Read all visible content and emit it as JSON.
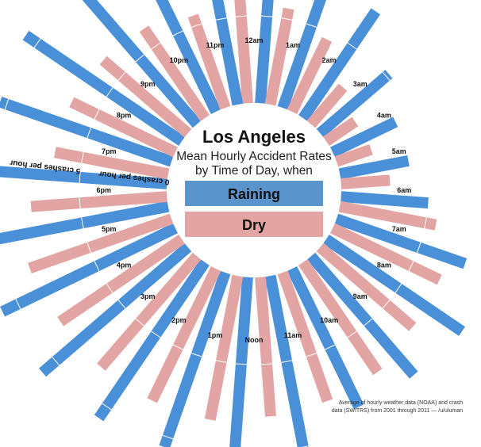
{
  "chart_data": {
    "type": "radial-bar",
    "title": "Los Angeles",
    "subtitle_lines": [
      "Mean Hourly Accident Rates",
      "by Time of Day, when"
    ],
    "unit": "crashes per hour",
    "scale_labels": [
      "0 crashes per hour",
      "5 crashes per hour",
      "10 crashes per hour"
    ],
    "scale_ticks": [
      0,
      5,
      10
    ],
    "categories": [
      "12am",
      "1am",
      "2am",
      "3am",
      "4am",
      "5am",
      "6am",
      "7am",
      "8am",
      "9am",
      "10am",
      "11am",
      "Noon",
      "1pm",
      "2pm",
      "3pm",
      "4pm",
      "5pm",
      "6pm",
      "7pm",
      "8pm",
      "9pm",
      "10pm",
      "11pm"
    ],
    "series": [
      {
        "name": "Raining",
        "color": "#4a90d9",
        "values": [
          9.6,
          7.8,
          7.4,
          5.2,
          4.0,
          4.0,
          5.0,
          7.8,
          9.4,
          9.0,
          8.8,
          10.2,
          11.0,
          10.6,
          10.8,
          11.0,
          11.0,
          11.2,
          10.8,
          10.4,
          10.8,
          10.8,
          10.4,
          10.2
        ]
      },
      {
        "name": "Dry",
        "color": "#e3a4a4",
        "values": [
          7.6,
          5.6,
          4.6,
          2.8,
          2.0,
          2.1,
          2.8,
          5.6,
          6.8,
          7.0,
          7.6,
          7.8,
          8.0,
          8.4,
          8.4,
          8.4,
          8.4,
          8.6,
          7.8,
          6.6,
          6.6,
          6.4,
          6.2,
          5.6
        ]
      }
    ]
  },
  "source_lines": [
    "Average of hourly weather data (NOAA) and crash",
    "data (SWITRS) from 2001 through 2011  —  /u/uluman"
  ]
}
